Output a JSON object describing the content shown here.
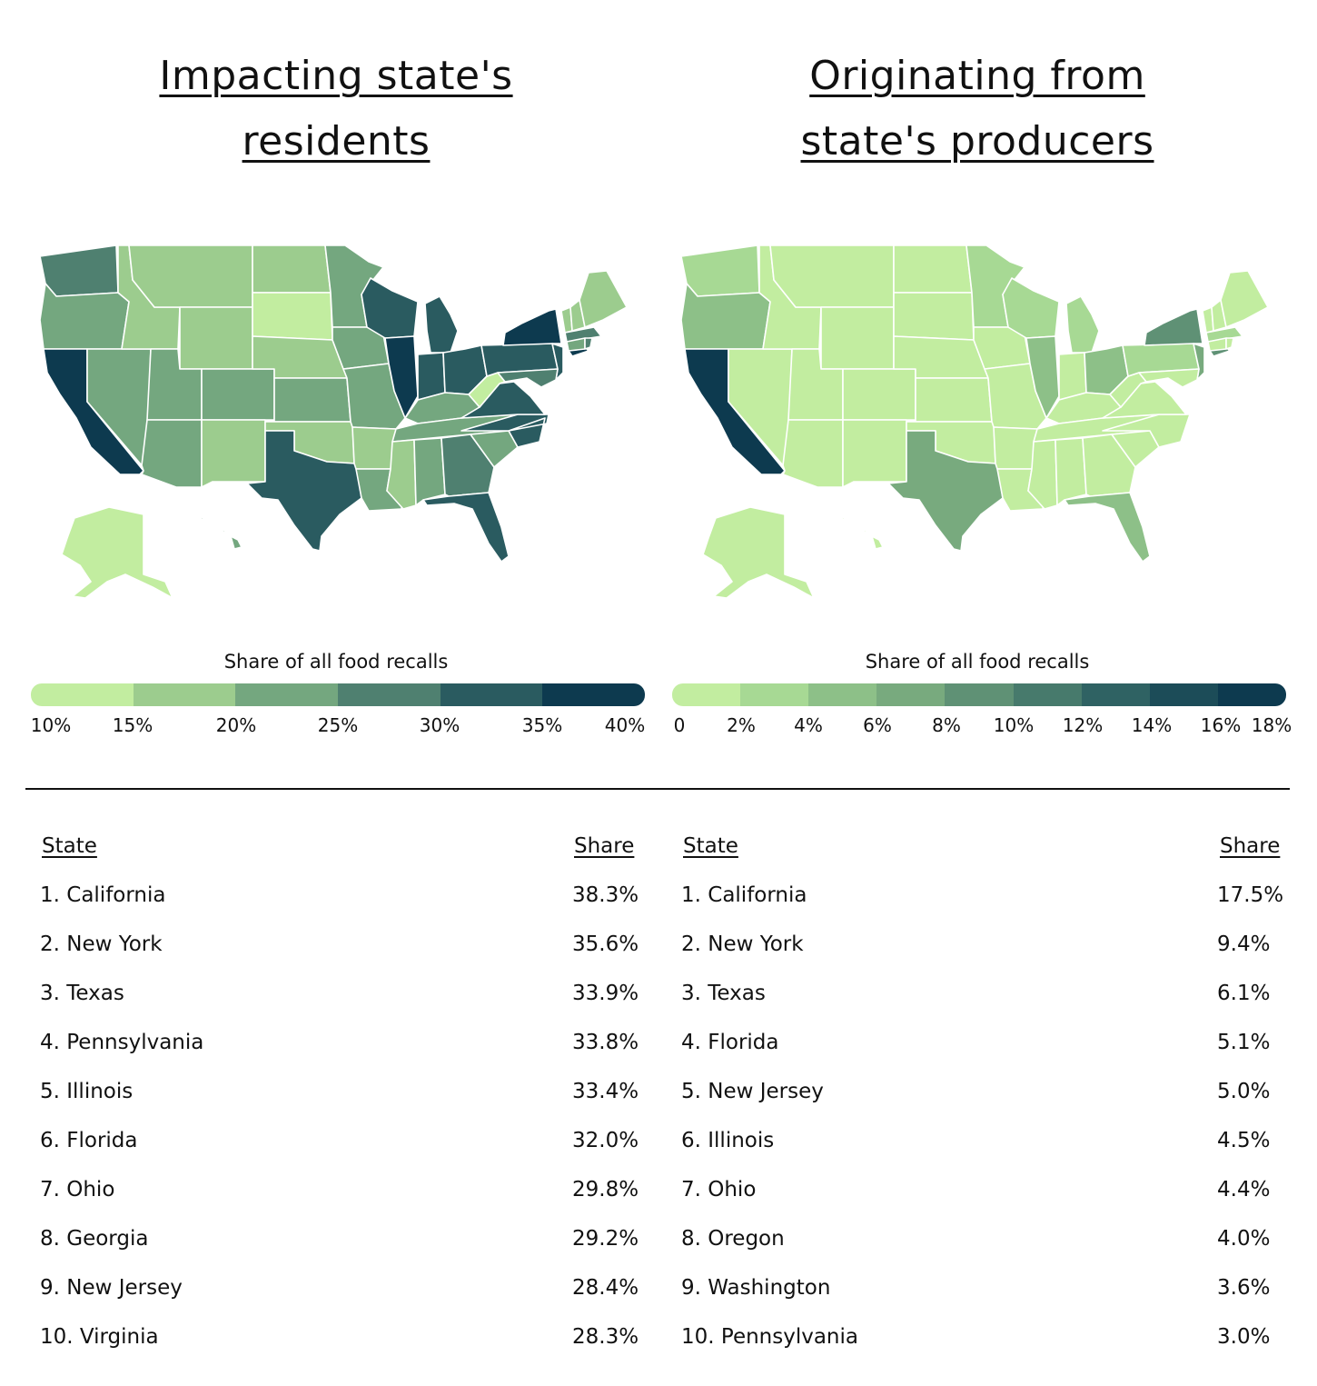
{
  "left": {
    "title_line1": "Impacting state's ",
    "title_line2": "residents",
    "legend": {
      "title": "Share of all food recalls",
      "ticks": [
        "10%",
        "15%",
        "20%",
        "25%",
        "30%",
        "35%",
        "40%"
      ],
      "colors": [
        "#c2eda0",
        "#9ccc8e",
        "#74a77f",
        "#4f8070",
        "#2a5b60",
        "#0d3a4f"
      ]
    },
    "table": {
      "col_state": "State",
      "col_share": "Share",
      "rows": [
        {
          "state": "1. California",
          "share": "38.3%"
        },
        {
          "state": "2. New York",
          "share": "35.6%"
        },
        {
          "state": "3. Texas",
          "share": "33.9%"
        },
        {
          "state": "4. Pennsylvania",
          "share": "33.8%"
        },
        {
          "state": "5. Illinois",
          "share": "33.4%"
        },
        {
          "state": "6. Florida",
          "share": "32.0%"
        },
        {
          "state": "7. Ohio",
          "share": "29.8%"
        },
        {
          "state": "8. Georgia",
          "share": "29.2%"
        },
        {
          "state": "9. New Jersey",
          "share": "28.4%"
        },
        {
          "state": "10. Virginia",
          "share": "28.3%"
        }
      ]
    }
  },
  "right": {
    "title_line1": "Originating from ",
    "title_line2": "state's producers",
    "legend": {
      "title": "Share of all food recalls",
      "ticks": [
        "0",
        "2%",
        "4%",
        "6%",
        "8%",
        "10%",
        "12%",
        "14%",
        "16%",
        "18%"
      ],
      "colors": [
        "#c2eda0",
        "#a7d994",
        "#8dc088",
        "#78aa7e",
        "#5f9175",
        "#477a6c",
        "#2f6263",
        "#1c4c58",
        "#0d3a4f"
      ]
    },
    "table": {
      "col_state": "State",
      "col_share": "Share",
      "rows": [
        {
          "state": "1. California",
          "share": "17.5%"
        },
        {
          "state": "2. New York",
          "share": "9.4%"
        },
        {
          "state": "3. Texas",
          "share": "6.1%"
        },
        {
          "state": "4. Florida",
          "share": "5.1%"
        },
        {
          "state": "5. New Jersey",
          "share": "5.0%"
        },
        {
          "state": "6. Illinois",
          "share": "4.5%"
        },
        {
          "state": "7. Ohio",
          "share": "4.4%"
        },
        {
          "state": "8. Oregon",
          "share": "4.0%"
        },
        {
          "state": "9. Washington",
          "share": "3.6%"
        },
        {
          "state": "10. Pennsylvania",
          "share": "3.0%"
        }
      ]
    }
  }
}
